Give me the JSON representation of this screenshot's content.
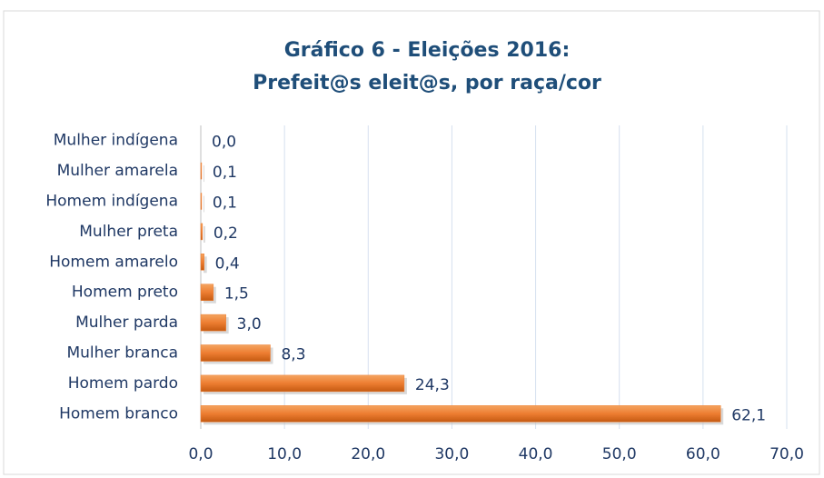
{
  "chart_data": {
    "type": "bar",
    "orientation": "horizontal",
    "title": [
      "Gráfico 6 - Eleições 2016:",
      "Prefeit@s eleit@s, por raça/cor"
    ],
    "categories": [
      "Mulher indígena",
      "Mulher  amarela",
      "Homem  indígena",
      "Mulher preta",
      "Homem amarelo",
      "Homem preto",
      "Mulher parda",
      "Mulher branca",
      "Homem pardo",
      "Homem branco"
    ],
    "values": [
      0.0,
      0.1,
      0.1,
      0.2,
      0.4,
      1.5,
      3.0,
      8.3,
      24.3,
      62.1
    ],
    "value_labels": [
      "0,0",
      "0,1",
      "0,1",
      "0,2",
      "0,4",
      "1,5",
      "3,0",
      "8,3",
      "24,3",
      "62,1"
    ],
    "color": "#ed7d31",
    "xlim": [
      0,
      70
    ],
    "xticks": [
      {
        "value": 0,
        "label": "0,0"
      },
      {
        "value": 10,
        "label": "10,0"
      },
      {
        "value": 20,
        "label": "20,0"
      },
      {
        "value": 30,
        "label": "30,0"
      },
      {
        "value": 40,
        "label": "40,0"
      },
      {
        "value": 50,
        "label": "50,0"
      },
      {
        "value": 60,
        "label": "60,0"
      },
      {
        "value": 70,
        "label": "70,0"
      }
    ],
    "grid": true
  }
}
